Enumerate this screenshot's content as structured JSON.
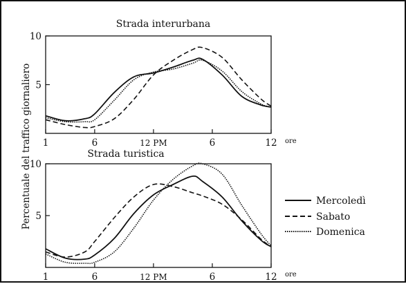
{
  "ylabel": "Percentuale del traffico giornaliero",
  "legend": [
    {
      "name": "Mercoledì",
      "style": "solid"
    },
    {
      "name": "Sabato",
      "style": "dashed"
    },
    {
      "name": "Domenica",
      "style": "dotted"
    }
  ],
  "colors": {
    "line": "#111111",
    "background": "#ffffff"
  },
  "chart_data": [
    {
      "type": "line",
      "title": "Strada interurbana",
      "xlabel": "ore",
      "x_ticks": [
        "1",
        "6",
        "12 PM",
        "6",
        "12"
      ],
      "y_ticks": [
        "5",
        "10"
      ],
      "ylim": [
        0,
        10
      ],
      "xlim": [
        1,
        24
      ],
      "x": [
        1,
        3,
        5,
        6,
        8,
        10,
        12,
        14,
        16,
        17,
        19,
        21,
        23,
        24
      ],
      "series": [
        {
          "name": "Mercoledì",
          "values": [
            1.8,
            1.3,
            1.5,
            2.0,
            4.2,
            5.8,
            6.2,
            6.8,
            7.5,
            7.6,
            6.0,
            3.8,
            2.9,
            2.7
          ]
        },
        {
          "name": "Sabato",
          "values": [
            1.4,
            0.9,
            0.6,
            0.7,
            1.5,
            3.5,
            6.0,
            7.5,
            8.6,
            8.8,
            7.8,
            5.5,
            3.5,
            2.8
          ]
        },
        {
          "name": "Domenica",
          "values": [
            1.6,
            1.2,
            1.2,
            1.4,
            3.4,
            5.5,
            6.3,
            6.6,
            7.2,
            7.5,
            6.4,
            4.3,
            3.0,
            2.7
          ]
        }
      ]
    },
    {
      "type": "line",
      "title": "Strada turistica",
      "xlabel": "ore",
      "x_ticks": [
        "1",
        "6",
        "12 PM",
        "6",
        "12"
      ],
      "y_ticks": [
        "5",
        "10"
      ],
      "ylim": [
        0,
        10
      ],
      "xlim": [
        1,
        24
      ],
      "x": [
        1,
        3,
        5,
        6,
        8,
        10,
        12,
        14,
        16,
        17,
        19,
        21,
        23,
        24
      ],
      "series": [
        {
          "name": "Mercoledì",
          "values": [
            1.8,
            0.9,
            0.8,
            1.2,
            2.8,
            5.2,
            7.0,
            8.0,
            8.8,
            8.3,
            6.8,
            4.5,
            2.6,
            2.0
          ]
        },
        {
          "name": "Sabato",
          "values": [
            1.5,
            1.0,
            1.5,
            2.5,
            4.8,
            6.8,
            8.0,
            7.8,
            7.2,
            6.9,
            6.1,
            4.6,
            2.7,
            2.0
          ]
        },
        {
          "name": "Domenica",
          "values": [
            1.3,
            0.5,
            0.4,
            0.5,
            1.5,
            3.8,
            6.5,
            8.5,
            9.8,
            10.0,
            9.0,
            6.0,
            3.2,
            2.1
          ]
        }
      ]
    }
  ]
}
